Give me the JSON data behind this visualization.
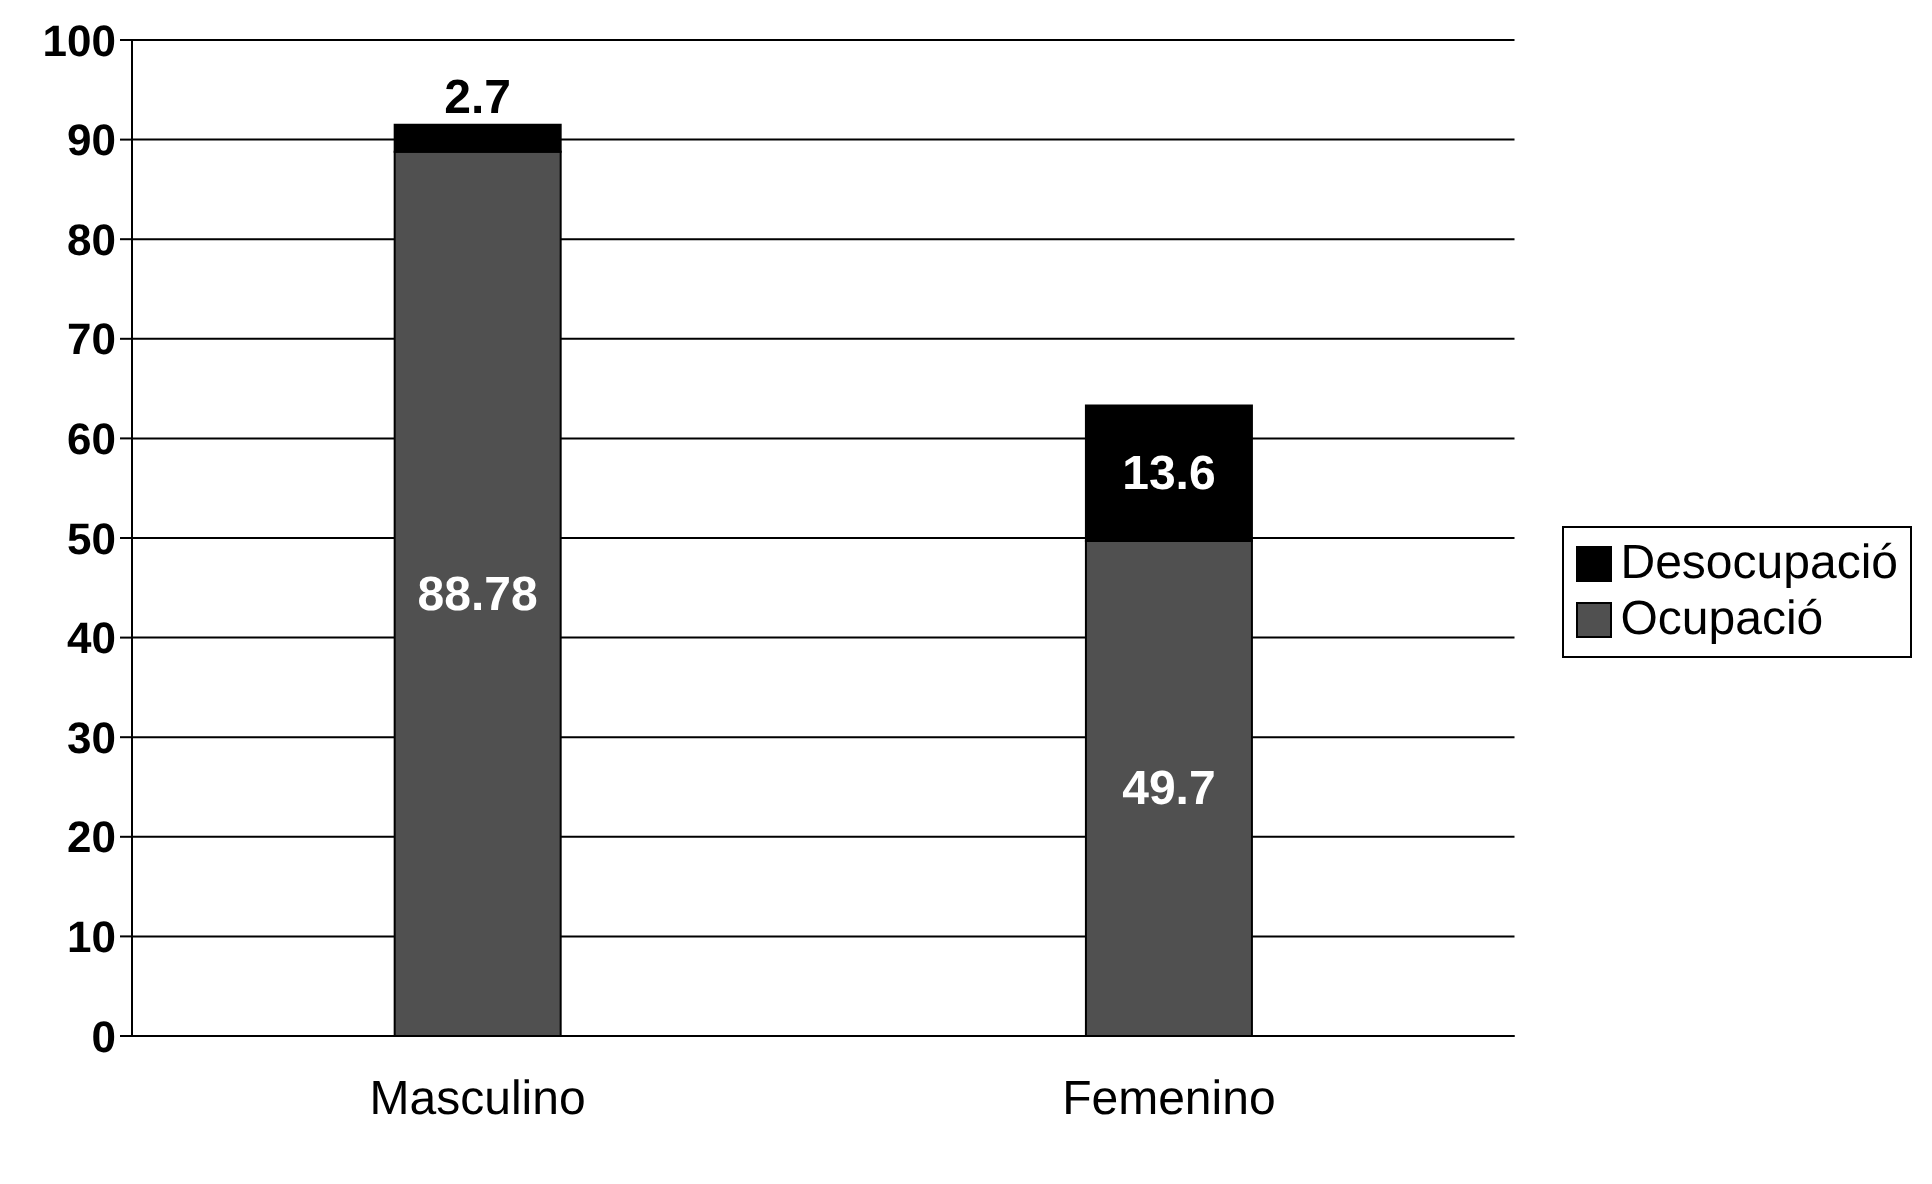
{
  "chart_data": {
    "type": "bar",
    "stacked": true,
    "categories": [
      "Masculino",
      "Femenino"
    ],
    "series": [
      {
        "name": "Ocupació",
        "color": "#505050",
        "values": [
          88.78,
          49.7
        ]
      },
      {
        "name": "Desocupació",
        "color": "#000000",
        "values": [
          2.7,
          13.6
        ]
      }
    ],
    "ylim": [
      0,
      100
    ],
    "yticks": [
      0,
      10,
      20,
      30,
      40,
      50,
      60,
      70,
      80,
      90,
      100
    ],
    "grid": "y",
    "legend": "right",
    "data_labels": true
  }
}
